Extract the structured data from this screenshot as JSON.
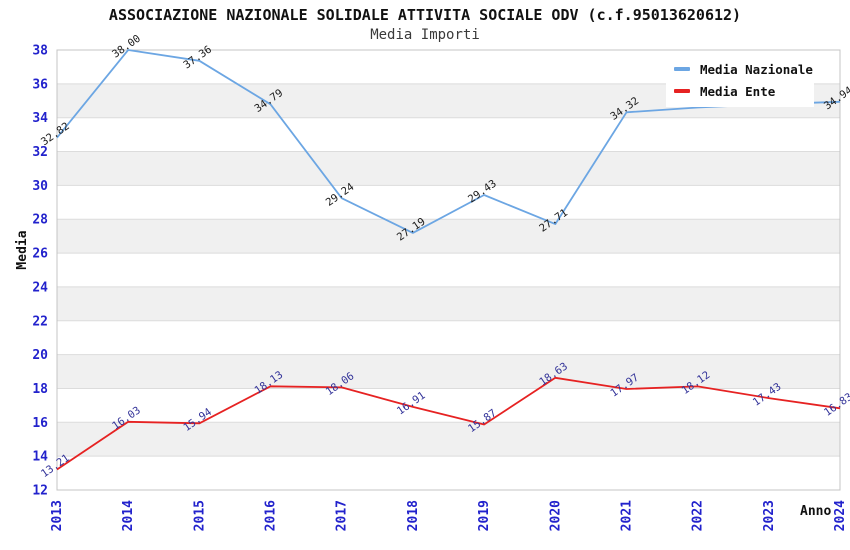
{
  "title": "ASSOCIAZIONE NAZIONALE SOLIDALE ATTIVITA SOCIALE ODV (c.f.95013620612)",
  "subtitle": "Media Importi",
  "colors": {
    "national_line": "#6CA6E3",
    "ente_line": "#E62222",
    "tick_label": "#2222CC",
    "national_point_label": "#1A1A1A",
    "ente_point_label": "#333399",
    "band_gray": "#F0F0F0",
    "gridline": "#DCDCDC",
    "plot_border": "#C4C4C4"
  },
  "legend": {
    "position": "top-right",
    "items": [
      {
        "label": "Media Nazionale",
        "color": "#6CA6E3"
      },
      {
        "label": "Media Ente",
        "color": "#E62222"
      }
    ]
  },
  "chart_data": {
    "type": "line",
    "title": "ASSOCIAZIONE NAZIONALE SOLIDALE ATTIVITA SOCIALE ODV (c.f.95013620612)",
    "subtitle": "Media Importi",
    "xlabel": "Anno",
    "ylabel": "Media",
    "x": [
      "2013",
      "2014",
      "2015",
      "2016",
      "2017",
      "2018",
      "2019",
      "2020",
      "2021",
      "2022",
      "2023",
      "2024"
    ],
    "ylim": [
      12,
      38
    ],
    "ytick_step": 2,
    "grid": "horizontal-bands",
    "series": [
      {
        "name": "Media Nazionale",
        "color": "#6CA6E3",
        "label_color": "#1A1A1A",
        "values": [
          32.82,
          38.0,
          37.36,
          34.79,
          29.24,
          27.19,
          29.43,
          27.71,
          34.32,
          34.6,
          34.8,
          34.94
        ],
        "labels": [
          "32.82",
          "38.00",
          "37.36",
          "34.79",
          "29.24",
          "27.19",
          "29.43",
          "27.71",
          "34.32",
          "",
          "",
          "34.94"
        ]
      },
      {
        "name": "Media Ente",
        "color": "#E62222",
        "label_color": "#333399",
        "values": [
          13.21,
          16.03,
          15.94,
          18.13,
          18.06,
          16.91,
          15.87,
          18.63,
          17.97,
          18.12,
          17.43,
          16.83
        ],
        "labels": [
          "13.21",
          "16.03",
          "15.94",
          "18.13",
          "18.06",
          "16.91",
          "15.87",
          "18.63",
          "17.97",
          "18.12",
          "17.43",
          "16.83"
        ]
      }
    ]
  }
}
